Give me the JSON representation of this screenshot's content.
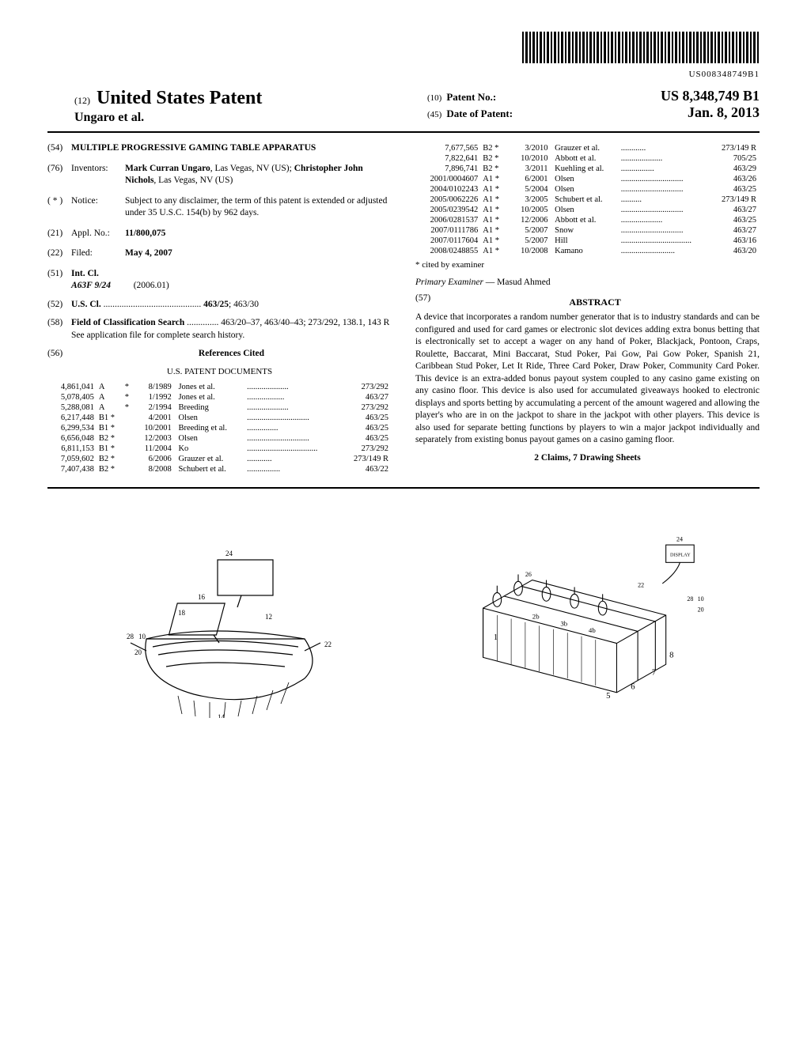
{
  "barcode_text": "US008348749B1",
  "header": {
    "twelve": "(12)",
    "usp": "United States Patent",
    "inventor_short": "Ungaro et al.",
    "ten": "(10)",
    "patent_no_label": "Patent No.:",
    "patent_no": "US 8,348,749 B1",
    "fortyfive": "(45)",
    "dop_label": "Date of Patent:",
    "dop": "Jan. 8, 2013"
  },
  "fields": {
    "f54_num": "(54)",
    "f54_title": "MULTIPLE PROGRESSIVE GAMING TABLE APPARATUS",
    "f76_num": "(76)",
    "f76_label": "Inventors:",
    "f76_text_b1": "Mark Curran Ungaro",
    "f76_text_1": ", Las Vegas, NV (US); ",
    "f76_text_b2": "Christopher John Nichols",
    "f76_text_2": ", Las Vegas, NV (US)",
    "fstar_num": "( * )",
    "fstar_label": "Notice:",
    "fstar_text": "Subject to any disclaimer, the term of this patent is extended or adjusted under 35 U.S.C. 154(b) by 962 days.",
    "f21_num": "(21)",
    "f21_label": "Appl. No.:",
    "f21_val": "11/800,075",
    "f22_num": "(22)",
    "f22_label": "Filed:",
    "f22_val": "May 4, 2007",
    "f51_num": "(51)",
    "f51_label": "Int. Cl.",
    "f51_code": "A63F 9/24",
    "f51_year": "(2006.01)",
    "f52_num": "(52)",
    "f52_label": "U.S. Cl.",
    "f52_val": " ........................................... ",
    "f52_bold": "463/25",
    "f52_rest": "; 463/30",
    "f58_num": "(58)",
    "f58_label": "Field of Classification Search",
    "f58_val": " .............. 463/20–37, 463/40–43; 273/292, 138.1, 143 R",
    "f58_note": "See application file for complete search history.",
    "f56_num": "(56)",
    "f56_label": "References Cited",
    "uspd": "U.S. PATENT DOCUMENTS"
  },
  "refs_left": [
    [
      "4,861,041",
      "A",
      "*",
      "8/1989",
      "Jones et al.",
      "....................",
      "273/292"
    ],
    [
      "5,078,405",
      "A",
      "*",
      "1/1992",
      "Jones et al.",
      "..................",
      "463/27"
    ],
    [
      "5,288,081",
      "A",
      "*",
      "2/1994",
      "Breeding",
      "....................",
      "273/292"
    ],
    [
      "6,217,448",
      "B1 *",
      "",
      "4/2001",
      "Olsen",
      "..............................",
      "463/25"
    ],
    [
      "6,299,534",
      "B1 *",
      "",
      "10/2001",
      "Breeding et al.",
      "...............",
      "463/25"
    ],
    [
      "6,656,048",
      "B2 *",
      "",
      "12/2003",
      "Olsen",
      "..............................",
      "463/25"
    ],
    [
      "6,811,153",
      "B1 *",
      "",
      "11/2004",
      "Ko",
      "..................................",
      "273/292"
    ],
    [
      "7,059,602",
      "B2 *",
      "",
      "6/2006",
      "Grauzer et al.",
      "............",
      "273/149 R"
    ],
    [
      "7,407,438",
      "B2 *",
      "",
      "8/2008",
      "Schubert et al.",
      "................",
      "463/22"
    ]
  ],
  "refs_right": [
    [
      "7,677,565",
      "B2 *",
      "",
      "3/2010",
      "Grauzer et al.",
      "............",
      "273/149 R"
    ],
    [
      "7,822,641",
      "B2 *",
      "",
      "10/2010",
      "Abbott et al.",
      "....................",
      "705/25"
    ],
    [
      "7,896,741",
      "B2 *",
      "",
      "3/2011",
      "Kuehling et al.",
      "................",
      "463/29"
    ],
    [
      "2001/0004607",
      "A1 *",
      "",
      "6/2001",
      "Olsen",
      "..............................",
      "463/26"
    ],
    [
      "2004/0102243",
      "A1 *",
      "",
      "5/2004",
      "Olsen",
      "..............................",
      "463/25"
    ],
    [
      "2005/0062226",
      "A1 *",
      "",
      "3/2005",
      "Schubert et al.",
      "..........",
      "273/149 R"
    ],
    [
      "2005/0239542",
      "A1 *",
      "",
      "10/2005",
      "Olsen",
      "..............................",
      "463/27"
    ],
    [
      "2006/0281537",
      "A1 *",
      "",
      "12/2006",
      "Abbott et al.",
      "....................",
      "463/25"
    ],
    [
      "2007/0111786",
      "A1 *",
      "",
      "5/2007",
      "Snow",
      "..............................",
      "463/27"
    ],
    [
      "2007/0117604",
      "A1 *",
      "",
      "5/2007",
      "Hill",
      "..................................",
      "463/16"
    ],
    [
      "2008/0248855",
      "A1 *",
      "",
      "10/2008",
      "Kamano",
      "..........................",
      "463/20"
    ]
  ],
  "cited": "* cited by examiner",
  "examiner_label": "Primary Examiner",
  "examiner_name": " — Masud Ahmed",
  "f57_num": "(57)",
  "abstract_label": "ABSTRACT",
  "abstract_text": "A device that incorporates a random number generator that is to industry standards and can be configured and used for card games or electronic slot devices adding extra bonus betting that is electronically set to accept a wager on any hand of Poker, Blackjack, Pontoon, Craps, Roulette, Baccarat, Mini Baccarat, Stud Poker, Pai Gow, Pai Gow Poker, Spanish 21, Caribbean Stud Poker, Let It Ride, Three Card Poker, Draw Poker, Community Card Poker. This device is an extra-added bonus payout system coupled to any casino game existing on any casino floor. This device is also used for accumulated giveaways hooked to electronic displays and sports betting by accumulating a percent of the amount wagered and allowing the player's who are in on the jackpot to share in the jackpot with other players. This device is also used for separate betting functions by players to win a major jackpot individually and separately from existing bonus payout games on a casino gaming floor.",
  "claims": "2 Claims, 7 Drawing Sheets"
}
